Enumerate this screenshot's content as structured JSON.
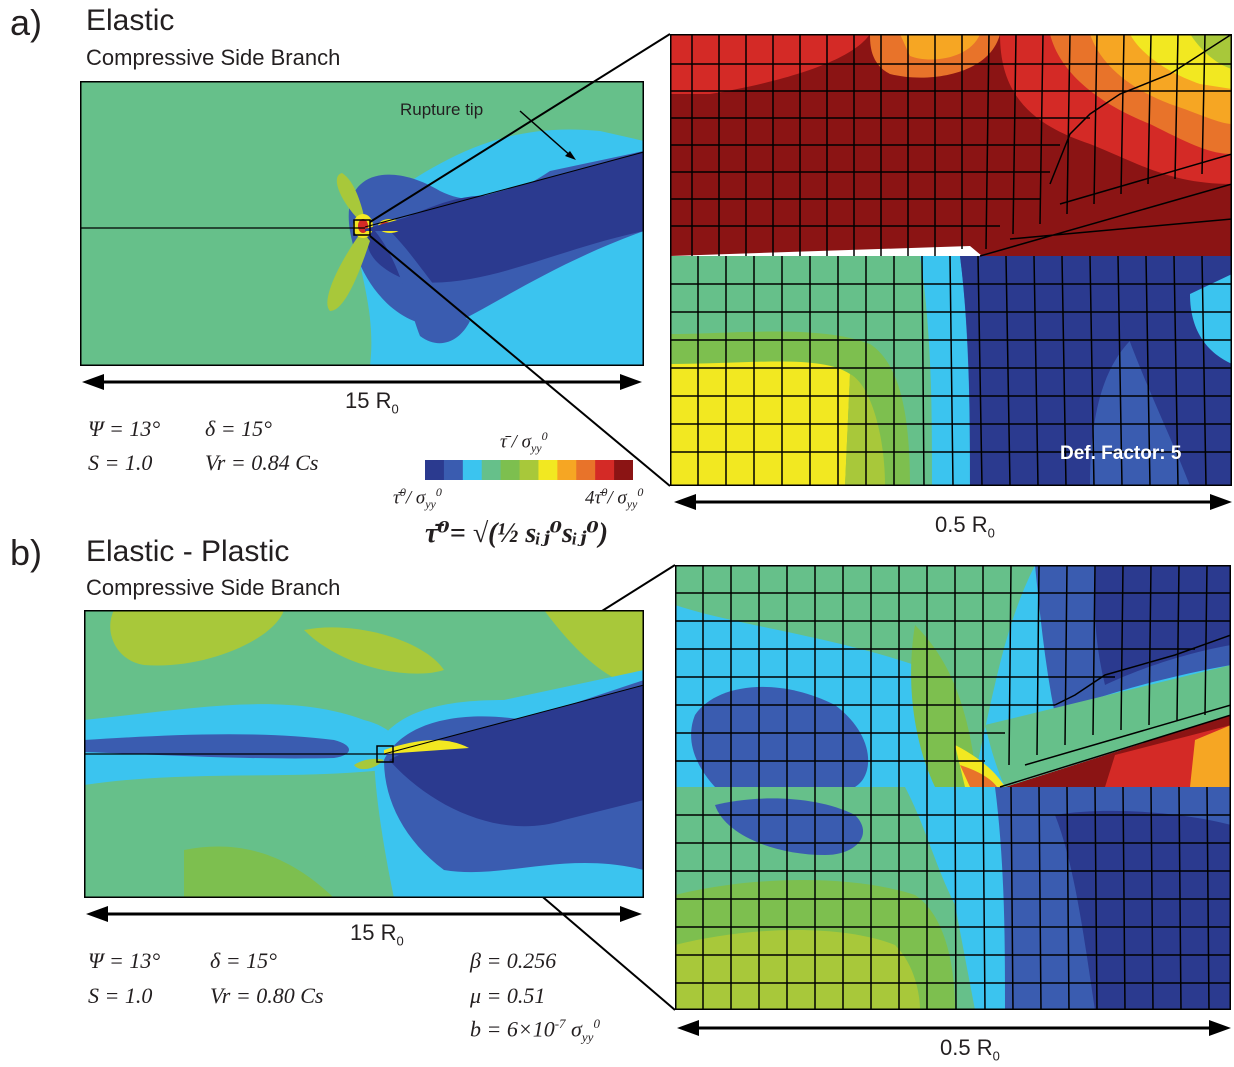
{
  "panel_a": {
    "letter": "a)",
    "title": "Elastic",
    "subtitle": "Compressive Side Branch",
    "annotation": "Rupture tip",
    "scale_main": "15 R",
    "scale_main_sub": "0",
    "scale_zoom": "0.5 R",
    "scale_zoom_sub": "0",
    "def_factor": "Def. Factor: 5",
    "params": {
      "psi": "Ψ = 13°",
      "delta": "δ = 15°",
      "s": "S = 1.0",
      "vr": "Vr = 0.84 Cs"
    }
  },
  "panel_b": {
    "letter": "b)",
    "title": "Elastic - Plastic",
    "subtitle": "Compressive Side Branch",
    "scale_main": "15 R",
    "scale_main_sub": "0",
    "scale_zoom": "0.5 R",
    "scale_zoom_sub": "0",
    "params": {
      "psi": "Ψ = 13°",
      "delta": "δ = 15°",
      "s": "S = 1.0",
      "vr": "Vr = 0.80 Cs",
      "beta": "β = 0.256",
      "mu": "μ = 0.51",
      "b_lhs": "b = 6×10",
      "b_exp": "-7",
      "b_sigma": "σ",
      "b_sub": "yy",
      "b_sup": "0"
    }
  },
  "colorbar": {
    "title_num": "τ̄ / σ",
    "title_sub": "yy",
    "title_sup": "0",
    "min_label": "τ̄",
    "max_label": "4τ̄",
    "sigma": "σ",
    "sub": "yy",
    "sup": "0",
    "formula": "τ̄⁰= √(½ sᵢⱼ⁰sᵢⱼ⁰)",
    "colors": [
      "#2b3a8f",
      "#3a5cb0",
      "#3bc4ef",
      "#66c08a",
      "#7dbf4f",
      "#a8c83a",
      "#f2e821",
      "#f6a623",
      "#e8732a",
      "#d42a26",
      "#8b1414"
    ]
  }
}
